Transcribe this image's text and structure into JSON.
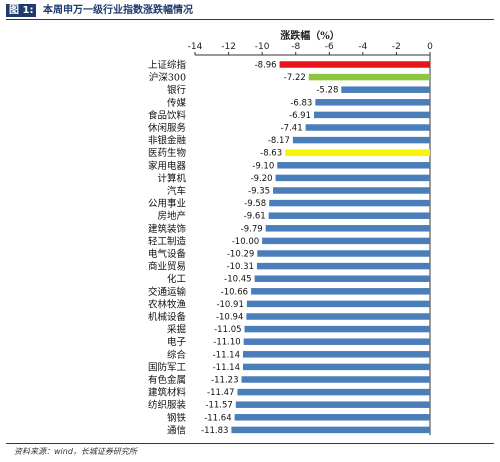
{
  "figure": {
    "tag": "图 1:",
    "title": "本周申万一级行业指数涨跌幅情况"
  },
  "source": "资料来源：wind，长城证券研究所",
  "colors": {
    "default_bar": "#4a7ebb",
    "highlight_red": "#e8151b",
    "highlight_green": "#8dc73f",
    "highlight_yellow": "#f7f40a",
    "axis": "#333333"
  },
  "chart_data": {
    "type": "bar",
    "orientation": "horizontal",
    "title": "涨跌幅（%）",
    "xlim": [
      -14,
      0
    ],
    "xticks": [
      -14,
      -12,
      -10,
      -8,
      -6,
      -4,
      -2,
      0
    ],
    "categories": [
      "上证综指",
      "沪深300",
      "银行",
      "传媒",
      "食品饮料",
      "休闲服务",
      "非银金融",
      "医药生物",
      "家用电器",
      "计算机",
      "汽车",
      "公用事业",
      "房地产",
      "建筑装饰",
      "轻工制造",
      "电气设备",
      "商业贸易",
      "化工",
      "交通运输",
      "农林牧渔",
      "机械设备",
      "采掘",
      "电子",
      "综合",
      "国防军工",
      "有色金属",
      "建筑材料",
      "纺织服装",
      "钢铁",
      "通信"
    ],
    "values": [
      -8.96,
      -7.22,
      -5.28,
      -6.83,
      -6.91,
      -7.41,
      -8.17,
      -8.63,
      -9.1,
      -9.2,
      -9.35,
      -9.58,
      -9.61,
      -9.79,
      -10.0,
      -10.29,
      -10.31,
      -10.45,
      -10.66,
      -10.91,
      -10.94,
      -11.05,
      -11.1,
      -11.14,
      -11.14,
      -11.23,
      -11.47,
      -11.57,
      -11.64,
      -11.83
    ],
    "value_labels": [
      "-8.96",
      "-7.22",
      "-5.28",
      "-6.83",
      "-6.91",
      "-7.41",
      "-8.17",
      "-8.63",
      "-9.10",
      "-9.20",
      "-9.35",
      "-9.58",
      "-9.61",
      "-9.79",
      "-10.00",
      "-10.29",
      "-10.31",
      "-10.45",
      "-10.66",
      "-10.91",
      "-10.94",
      "-11.05",
      "-11.10",
      "-11.14",
      "-11.14",
      "-11.23",
      "-11.47",
      "-11.57",
      "-11.64",
      "-11.83"
    ],
    "highlights": {
      "上证综指": "red",
      "沪深300": "green",
      "医药生物": "yellow"
    },
    "grid": false,
    "legend": "none"
  }
}
